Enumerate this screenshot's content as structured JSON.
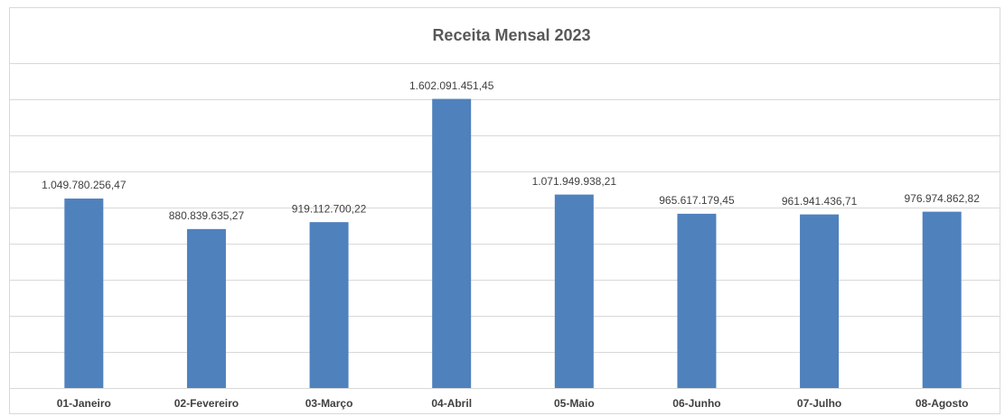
{
  "chart_data": {
    "type": "bar",
    "title": "Receita Mensal 2023",
    "categories": [
      "01-Janeiro",
      "02-Fevereiro",
      "03-Março",
      "04-Abril",
      "05-Maio",
      "06-Junho",
      "07-Julho",
      "08-Agosto"
    ],
    "values": [
      1049780256.47,
      880839635.27,
      919112700.22,
      1602091451.45,
      1071949938.21,
      965617179.45,
      961941436.71,
      976974862.82
    ],
    "value_labels": [
      "1.049.780.256,47",
      "880.839.635,27",
      "919.112.700,22",
      "1.602.091.451,45",
      "1.071.949.938,21",
      "965.617.179,45",
      "961.941.436,71",
      "976.974.862,82"
    ],
    "color": "#4f81bd",
    "ylim": [
      0,
      1800000000
    ],
    "yticks": [
      0,
      200000000,
      400000000,
      600000000,
      800000000,
      1000000000,
      1200000000,
      1400000000,
      1600000000,
      1800000000
    ],
    "grid": true
  }
}
